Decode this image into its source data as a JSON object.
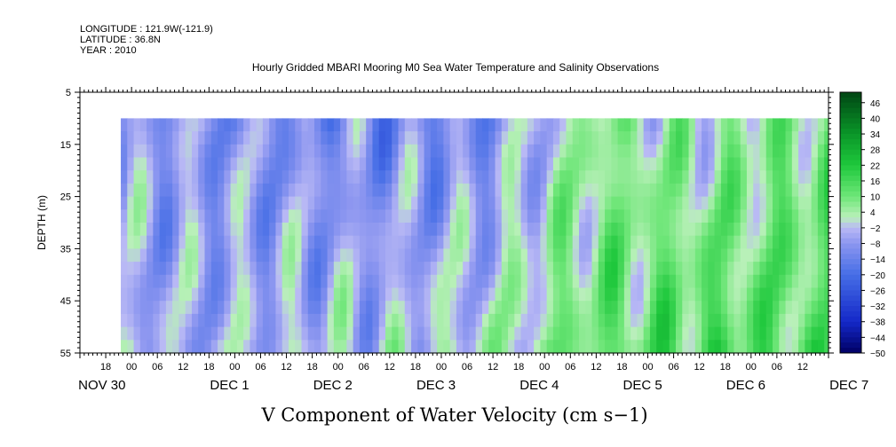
{
  "header": {
    "longitude": "LONGITUDE : 121.9W(-121.9)",
    "latitude": "LATITUDE : 36.8N",
    "year": "YEAR : 2010"
  },
  "chart_data": {
    "type": "heatmap",
    "title": "Hourly Gridded MBARI Mooring M0 Sea Water Temperature and Salinity Observations",
    "xlabel": "V Component of Water Velocity (cm s−1)",
    "ylabel": "DEPTH (m)",
    "ylim": [
      5,
      55
    ],
    "y_reversed": true,
    "y_ticks": [
      "5",
      "15",
      "25",
      "35",
      "45",
      "55"
    ],
    "x_hour_ticks": [
      "18",
      "00",
      "06",
      "12",
      "18",
      "00",
      "06",
      "12",
      "18",
      "00",
      "06",
      "12",
      "18",
      "00",
      "06",
      "12",
      "18",
      "00",
      "06",
      "12",
      "18",
      "00",
      "06",
      "12",
      "18",
      "00",
      "06",
      "12"
    ],
    "x_day_labels": [
      "NOV 30",
      "DEC  1",
      "DEC  2",
      "DEC  3",
      "DEC  4",
      "DEC  5",
      "DEC  6",
      "DEC  7"
    ],
    "data_depth_range": [
      10,
      55
    ],
    "colorbar": {
      "levels": [
        "46",
        "40",
        "34",
        "28",
        "22",
        "16",
        "10",
        "4",
        "−2",
        "−8",
        "−14",
        "−20",
        "−26",
        "−32",
        "−38",
        "−44",
        "−50"
      ],
      "min": -50,
      "max": 50,
      "colors": {
        "strong_positive": "#005a14",
        "positive": "#1ec83c",
        "weak_positive": "#b4f0b4",
        "weak_negative": "#b4b4f5",
        "negative": "#3c5ae6",
        "strong_negative": "#000064"
      }
    },
    "daily_mean_profile": [
      {
        "day": "NOV 30",
        "surface": -6,
        "bottom": -4
      },
      {
        "day": "DEC  1",
        "surface": -8,
        "bottom": -5
      },
      {
        "day": "DEC  2",
        "surface": -10,
        "bottom": -3
      },
      {
        "day": "DEC  3",
        "surface": -12,
        "bottom": -2
      },
      {
        "day": "DEC  4",
        "surface": -10,
        "bottom": 2
      },
      {
        "day": "DEC  5",
        "surface": 6,
        "bottom": 10
      },
      {
        "day": "DEC  6",
        "surface": 2,
        "bottom": 14
      },
      {
        "day": "DEC  7",
        "surface": 8,
        "bottom": 12
      }
    ]
  }
}
